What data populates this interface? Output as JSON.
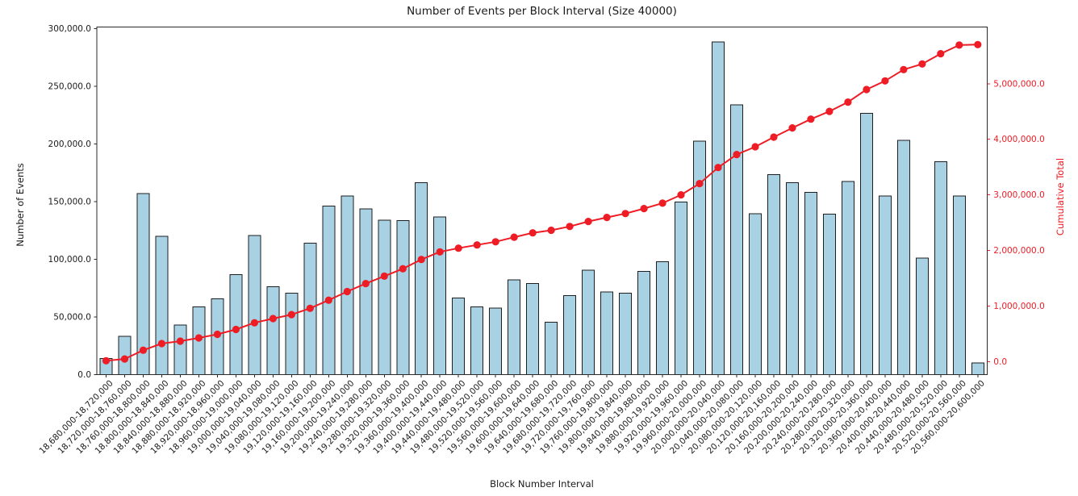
{
  "colors": {
    "bar_fill": "#a8d1e3",
    "bar_edge": "#1f1f1f",
    "line": "#ee1c25",
    "axis_text": "#1a1a1a",
    "spine": "#2a2a2a"
  },
  "chart_data": {
    "type": "bar",
    "title": "Number of Events per Block Interval (Size 40000)",
    "xlabel": "Block Number Interval",
    "ylabel_left": "Number of Events",
    "ylabel_right": "Cumulative Total",
    "grid": false,
    "legend_position": "none",
    "categories": [
      "18,680,000-18,720,000",
      "18,720,000-18,760,000",
      "18,760,000-18,800,000",
      "18,800,000-18,840,000",
      "18,840,000-18,880,000",
      "18,880,000-18,920,000",
      "18,920,000-18,960,000",
      "18,960,000-19,000,000",
      "19,000,000-19,040,000",
      "19,040,000-19,080,000",
      "19,080,000-19,120,000",
      "19,120,000-19,160,000",
      "19,160,000-19,200,000",
      "19,200,000-19,240,000",
      "19,240,000-19,280,000",
      "19,280,000-19,320,000",
      "19,320,000-19,360,000",
      "19,360,000-19,400,000",
      "19,400,000-19,440,000",
      "19,440,000-19,480,000",
      "19,480,000-19,520,000",
      "19,520,000-19,560,000",
      "19,560,000-19,600,000",
      "19,600,000-19,640,000",
      "19,640,000-19,680,000",
      "19,680,000-19,720,000",
      "19,720,000-19,760,000",
      "19,760,000-19,800,000",
      "19,800,000-19,840,000",
      "19,840,000-19,880,000",
      "19,880,000-19,920,000",
      "19,920,000-19,960,000",
      "19,960,000-20,000,000",
      "20,000,000-20,040,000",
      "20,040,000-20,080,000",
      "20,080,000-20,120,000",
      "20,120,000-20,160,000",
      "20,160,000-20,200,000",
      "20,200,000-20,240,000",
      "20,240,000-20,280,000",
      "20,280,000-20,320,000",
      "20,320,000-20,360,000",
      "20,360,000-20,400,000",
      "20,400,000-20,440,000",
      "20,440,000-20,480,000",
      "20,480,000-20,520,000",
      "20,520,000-20,560,000",
      "20,560,000-20,600,000"
    ],
    "series": [
      {
        "name": "Number of Events",
        "type": "bar",
        "axis": "left",
        "color": "#a8d1e3",
        "edge_color": "#1f1f1f",
        "values": [
          14000,
          33000,
          157000,
          120000,
          43000,
          58500,
          65500,
          86500,
          120500,
          76000,
          70500,
          114000,
          146000,
          155000,
          143500,
          134000,
          133500,
          166500,
          136500,
          66500,
          58500,
          57500,
          82000,
          79000,
          45500,
          68500,
          90500,
          71500,
          70500,
          89500,
          98000,
          149500,
          202500,
          288500,
          234000,
          139500,
          173500,
          166500,
          158000,
          139000,
          167500,
          226500,
          155000,
          203000,
          101000,
          184500,
          155000,
          10000
        ]
      },
      {
        "name": "Cumulative Total",
        "type": "line",
        "axis": "right",
        "color": "#ee1c25",
        "marker": "circle",
        "values": [
          14000,
          47000,
          204000,
          324000,
          367000,
          425500,
          491000,
          577500,
          698000,
          774000,
          844500,
          958500,
          1104500,
          1259500,
          1403000,
          1537000,
          1670500,
          1837000,
          1973500,
          2040000,
          2098500,
          2156000,
          2238000,
          2317000,
          2362500,
          2431000,
          2521500,
          2593000,
          2663500,
          2753000,
          2851000,
          3000500,
          3203000,
          3491500,
          3725500,
          3865000,
          4038500,
          4205000,
          4363000,
          4502000,
          4669500,
          4896000,
          5051000,
          5254000,
          5355000,
          5539500,
          5694500,
          5704500
        ]
      }
    ],
    "left_axis": {
      "tick_values": [
        0,
        50000,
        100000,
        150000,
        200000,
        250000,
        300000
      ],
      "tick_labels": [
        "0.0",
        "50,000.0",
        "100,000.0",
        "150,000.0",
        "200,000.0",
        "250,000.0",
        "300,000.0"
      ],
      "range": [
        0,
        301700
      ]
    },
    "right_axis": {
      "tick_values": [
        0,
        1000000,
        2000000,
        3000000,
        4000000,
        5000000
      ],
      "tick_labels": [
        "0.0",
        "1,000,000.0",
        "2,000,000.0",
        "3,000,000.0",
        "4,000,000.0",
        "5,000,000.0"
      ],
      "range": [
        -235000,
        6023000
      ]
    }
  }
}
